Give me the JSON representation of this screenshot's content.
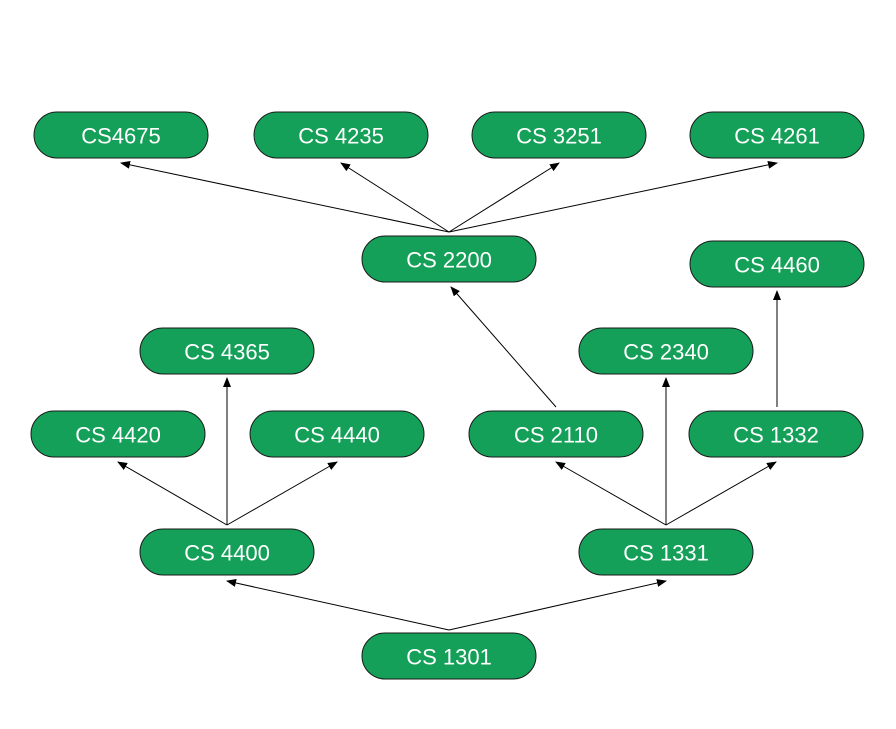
{
  "diagram": {
    "nodes": [
      {
        "id": "cs4675",
        "label": "CS4675"
      },
      {
        "id": "cs4235",
        "label": "CS 4235"
      },
      {
        "id": "cs3251",
        "label": "CS 3251"
      },
      {
        "id": "cs4261",
        "label": "CS 4261"
      },
      {
        "id": "cs2200",
        "label": "CS 2200"
      },
      {
        "id": "cs4460",
        "label": "CS 4460"
      },
      {
        "id": "cs4365",
        "label": "CS 4365"
      },
      {
        "id": "cs2340",
        "label": "CS 2340"
      },
      {
        "id": "cs4420",
        "label": "CS 4420"
      },
      {
        "id": "cs4440",
        "label": "CS 4440"
      },
      {
        "id": "cs2110",
        "label": "CS 2110"
      },
      {
        "id": "cs1332",
        "label": "CS 1332"
      },
      {
        "id": "cs4400",
        "label": "CS 4400"
      },
      {
        "id": "cs1331",
        "label": "CS 1331"
      },
      {
        "id": "cs1301",
        "label": "CS 1301"
      }
    ],
    "edges": [
      {
        "from": "cs2200",
        "to": "cs4675"
      },
      {
        "from": "cs2200",
        "to": "cs4235"
      },
      {
        "from": "cs2200",
        "to": "cs3251"
      },
      {
        "from": "cs2200",
        "to": "cs4261"
      },
      {
        "from": "cs2110",
        "to": "cs2200"
      },
      {
        "from": "cs1332",
        "to": "cs4460"
      },
      {
        "from": "cs4400",
        "to": "cs4365"
      },
      {
        "from": "cs4400",
        "to": "cs4420"
      },
      {
        "from": "cs4400",
        "to": "cs4440"
      },
      {
        "from": "cs1331",
        "to": "cs2110"
      },
      {
        "from": "cs1331",
        "to": "cs2340"
      },
      {
        "from": "cs1331",
        "to": "cs1332"
      },
      {
        "from": "cs1301",
        "to": "cs4400"
      },
      {
        "from": "cs1301",
        "to": "cs1331"
      }
    ],
    "colors": {
      "node_fill": "#14a058",
      "node_stroke": "#1a1a1a",
      "node_text": "#ffffff",
      "edge": "#000000"
    }
  }
}
